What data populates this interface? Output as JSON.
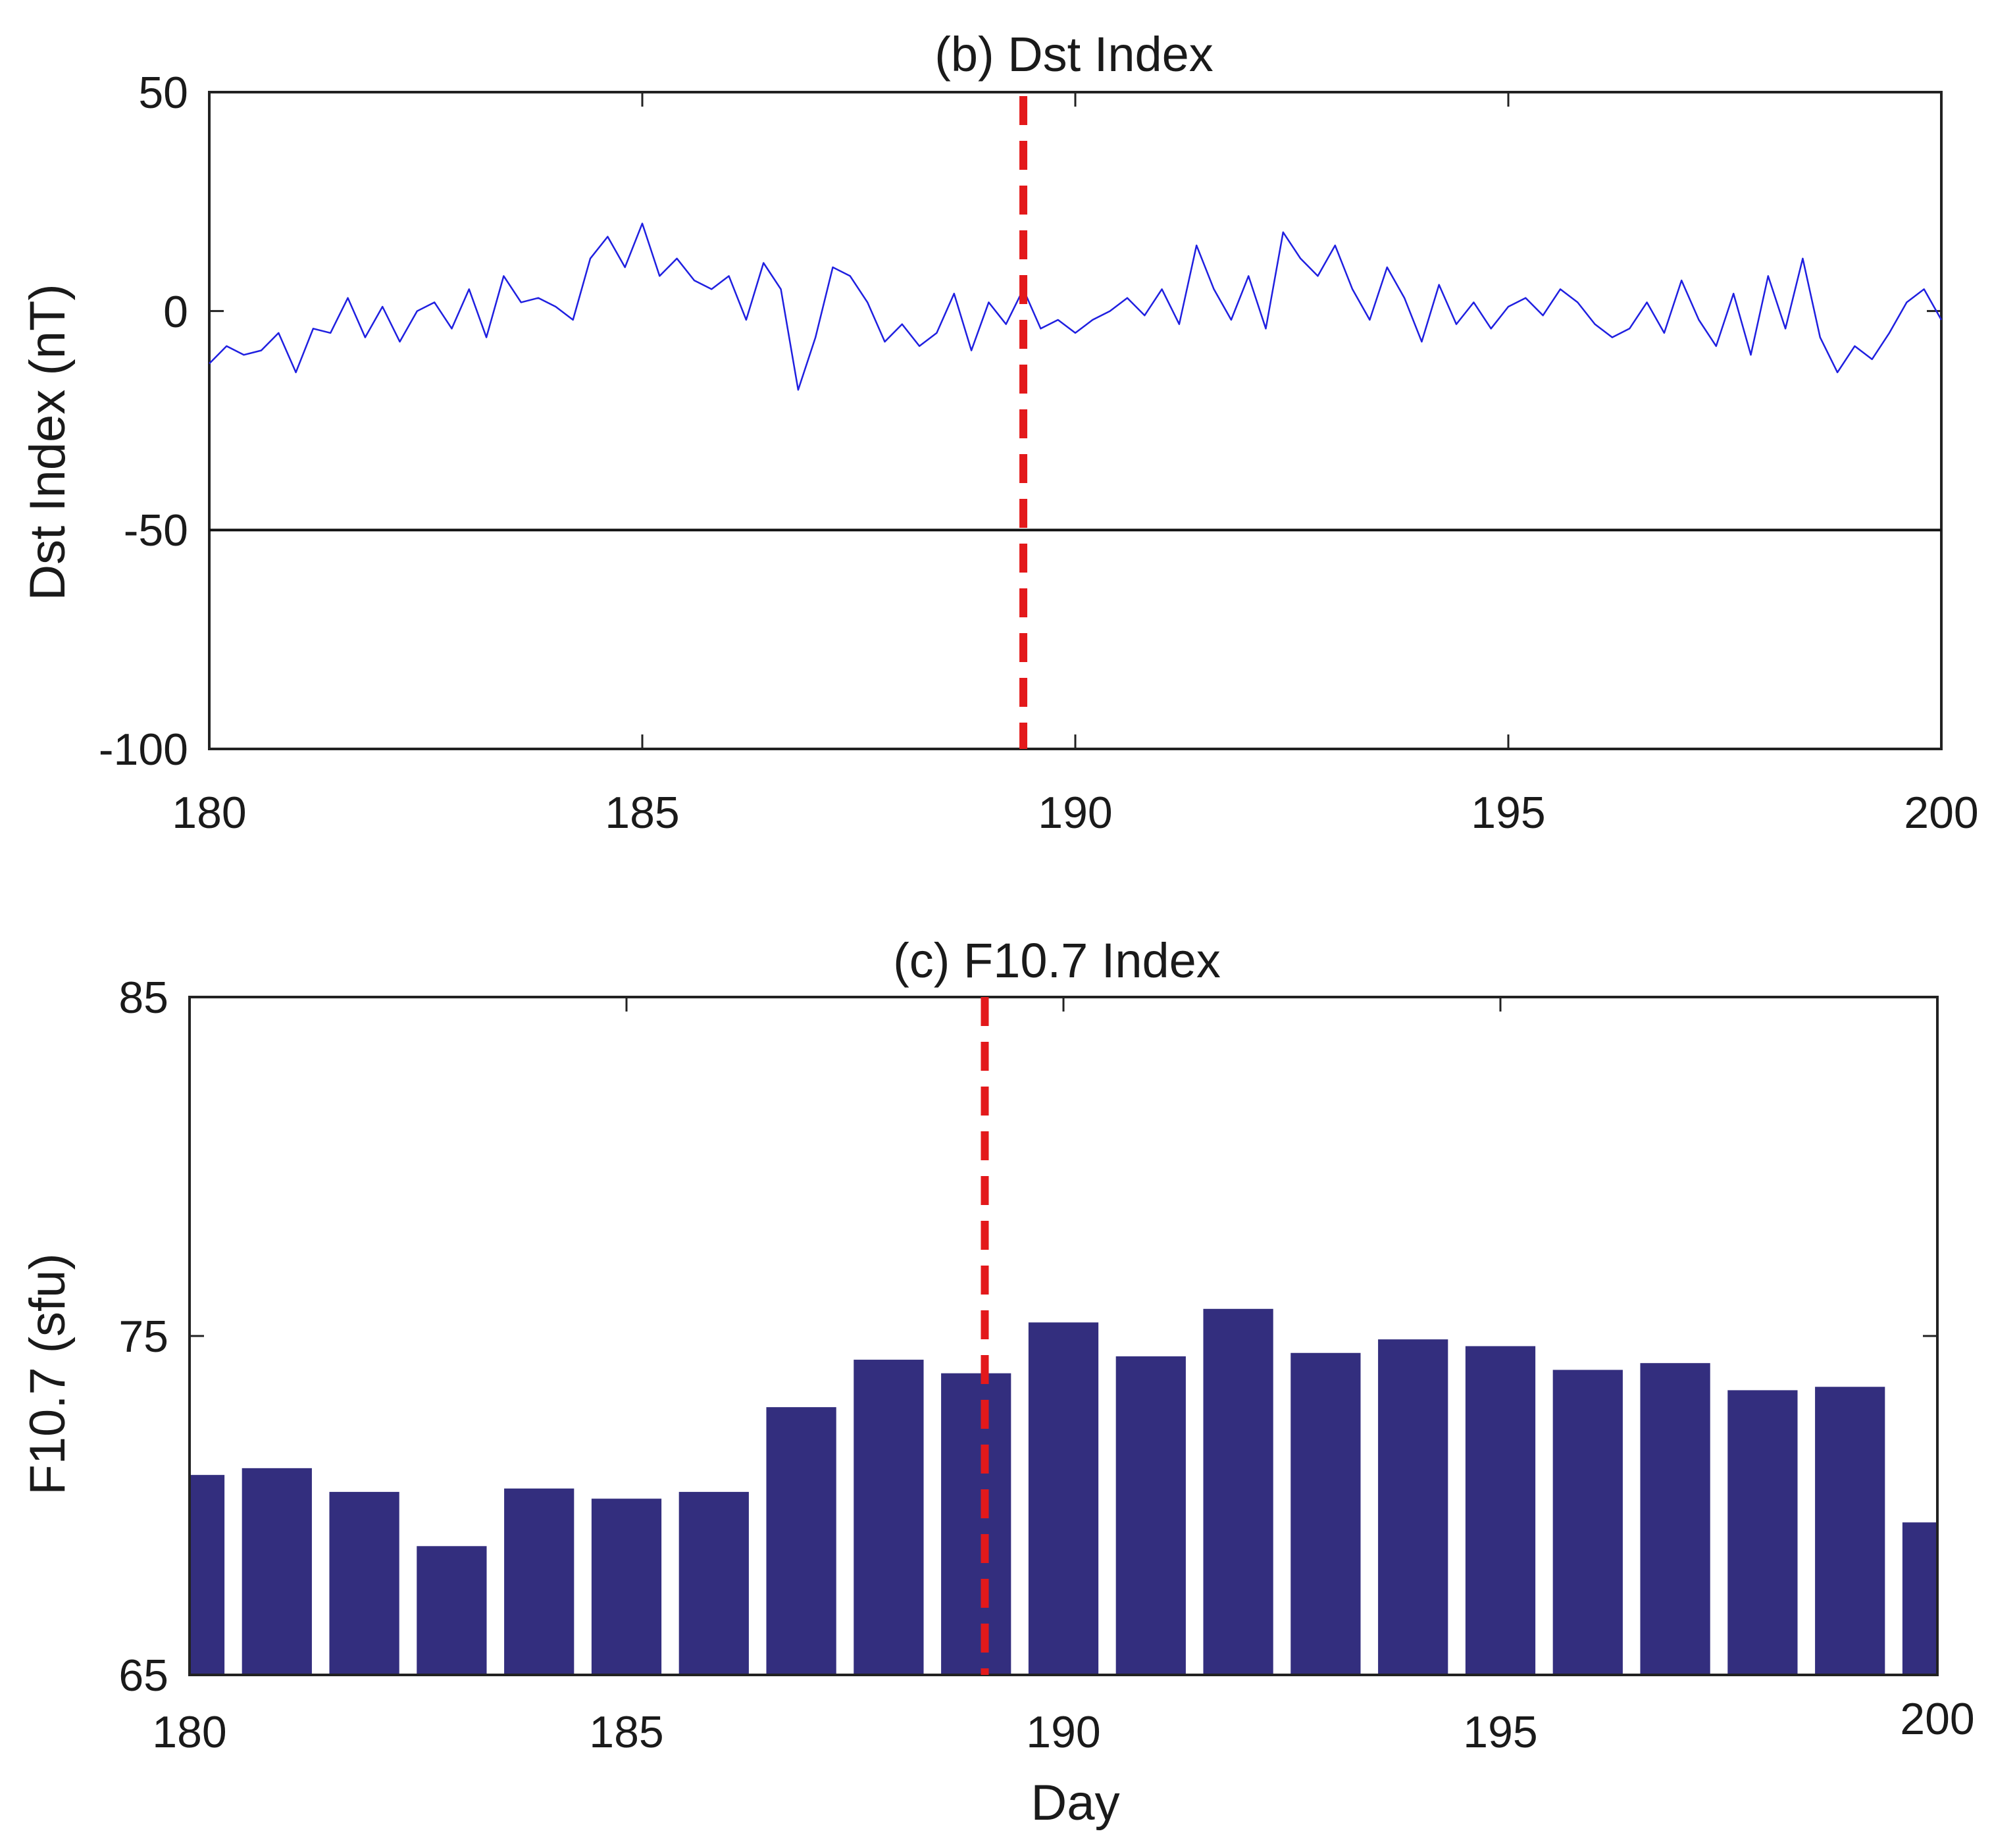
{
  "chart_data": [
    {
      "type": "line",
      "panel": "b",
      "title": "(b) Dst Index",
      "xlabel": "",
      "ylabel": "Dst Index (nT)",
      "xlim": [
        180,
        200
      ],
      "ylim": [
        -100,
        50
      ],
      "xticks": [
        "180",
        "185",
        "190",
        "195",
        "200"
      ],
      "yticks": [
        "50",
        "0",
        "-50",
        "-100"
      ],
      "reference_line_y": -50,
      "event_marker_x": 189.4,
      "series": [
        {
          "name": "Dst",
          "color": "#1f1fe0",
          "x": [
            180.0,
            180.2,
            180.4,
            180.6,
            180.8,
            181.0,
            181.2,
            181.4,
            181.6,
            181.8,
            182.0,
            182.2,
            182.4,
            182.6,
            182.8,
            183.0,
            183.2,
            183.4,
            183.6,
            183.8,
            184.0,
            184.2,
            184.4,
            184.6,
            184.8,
            185.0,
            185.2,
            185.4,
            185.6,
            185.8,
            186.0,
            186.2,
            186.4,
            186.6,
            186.8,
            187.0,
            187.2,
            187.4,
            187.6,
            187.8,
            188.0,
            188.2,
            188.4,
            188.6,
            188.8,
            189.0,
            189.2,
            189.4,
            189.6,
            189.8,
            190.0,
            190.2,
            190.4,
            190.6,
            190.8,
            191.0,
            191.2,
            191.4,
            191.6,
            191.8,
            192.0,
            192.2,
            192.4,
            192.6,
            192.8,
            193.0,
            193.2,
            193.4,
            193.6,
            193.8,
            194.0,
            194.2,
            194.4,
            194.6,
            194.8,
            195.0,
            195.2,
            195.4,
            195.6,
            195.8,
            196.0,
            196.2,
            196.4,
            196.6,
            196.8,
            197.0,
            197.2,
            197.4,
            197.6,
            197.8,
            198.0,
            198.2,
            198.4,
            198.6,
            198.8,
            199.0,
            199.2,
            199.4,
            199.6,
            199.8,
            200.0
          ],
          "y": [
            -12,
            -8,
            -10,
            -9,
            -5,
            -14,
            -4,
            -5,
            3,
            -6,
            1,
            -7,
            0,
            2,
            -4,
            5,
            -6,
            8,
            2,
            3,
            1,
            -2,
            12,
            17,
            10,
            20,
            8,
            12,
            7,
            5,
            8,
            -2,
            11,
            5,
            -18,
            -6,
            10,
            8,
            2,
            -7,
            -3,
            -8,
            -5,
            4,
            -9,
            2,
            -3,
            5,
            -4,
            -2,
            -5,
            -2,
            0,
            3,
            -1,
            5,
            -3,
            15,
            5,
            -2,
            8,
            -4,
            18,
            12,
            8,
            15,
            5,
            -2,
            10,
            3,
            -7,
            6,
            -3,
            2,
            -4,
            1,
            3,
            -1,
            5,
            2,
            -3,
            -6,
            -4,
            2,
            -5,
            7,
            -2,
            -8,
            4,
            -10,
            8,
            -4,
            12,
            -6,
            -14,
            -8,
            -11,
            -5,
            2,
            5,
            -2
          ]
        }
      ]
    },
    {
      "type": "bar",
      "panel": "c",
      "title": "(c) F10.7 Index",
      "xlabel": "Day",
      "ylabel": "F10.7 (sfu)",
      "xlim": [
        180,
        200
      ],
      "ylim": [
        65,
        85
      ],
      "xticks": [
        "180",
        "185",
        "190",
        "195",
        "200"
      ],
      "yticks": [
        "85",
        "75",
        "65"
      ],
      "event_marker_x": 189.1,
      "bar_color": "#332e7e",
      "categories": [
        180,
        181,
        182,
        183,
        184,
        185,
        186,
        187,
        188,
        189,
        190,
        191,
        192,
        193,
        194,
        195,
        196,
        197,
        198,
        199,
        200
      ],
      "values": [
        70.9,
        71.1,
        70.4,
        68.8,
        70.5,
        70.2,
        70.4,
        72.9,
        74.3,
        73.9,
        75.4,
        74.4,
        75.8,
        74.5,
        74.9,
        74.7,
        74.0,
        74.2,
        73.4,
        73.5,
        69.5
      ]
    }
  ]
}
